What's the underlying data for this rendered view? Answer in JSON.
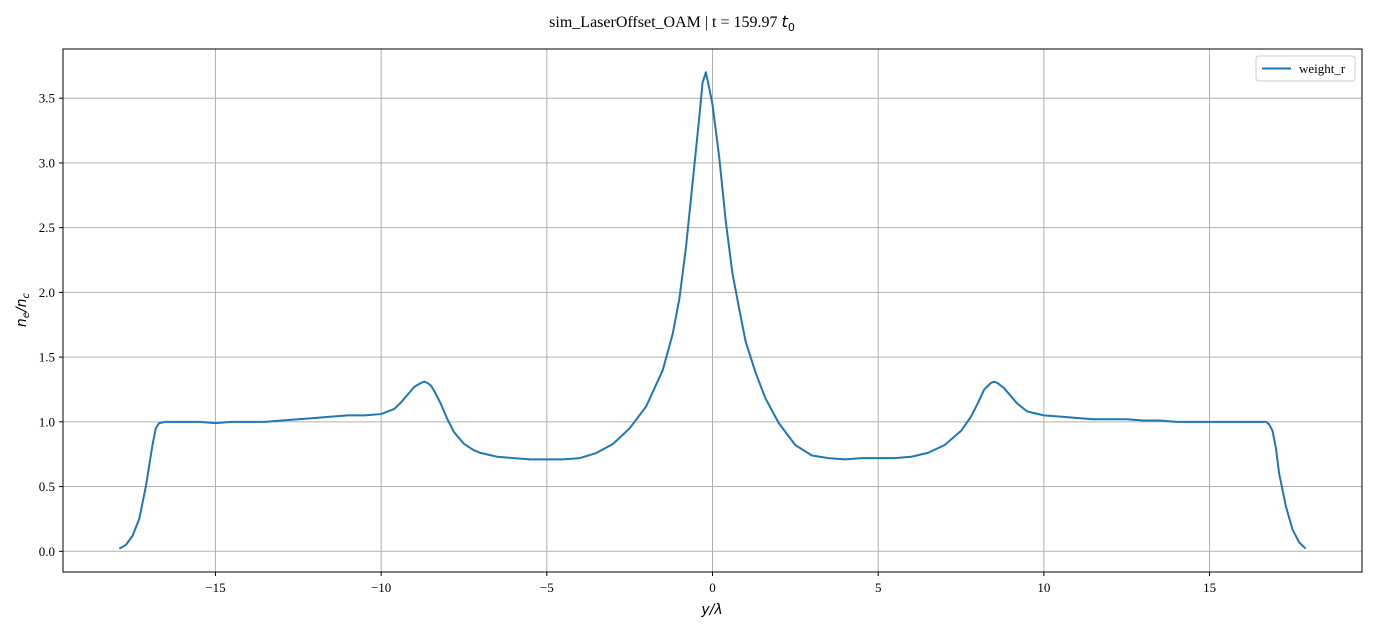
{
  "chart_data": {
    "type": "line",
    "title": "sim_LaserOffset_OAM | t = 159.97",
    "title_math": "t",
    "title_math_sub": "0",
    "xlabel": "y/λ",
    "ylabel": "n_e/n_c",
    "xlim": [
      -19.6,
      19.6
    ],
    "ylim": [
      -0.16,
      3.88
    ],
    "xticks": [
      -15,
      -10,
      -5,
      0,
      5,
      10,
      15
    ],
    "xtick_labels": [
      "−15",
      "−10",
      "−5",
      "0",
      "5",
      "10",
      "15"
    ],
    "yticks": [
      0.0,
      0.5,
      1.0,
      1.5,
      2.0,
      2.5,
      3.0,
      3.5
    ],
    "ytick_labels": [
      "0.0",
      "0.5",
      "1.0",
      "1.5",
      "2.0",
      "2.5",
      "3.0",
      "3.5"
    ],
    "grid": true,
    "legend_position": "top-right",
    "colors": {
      "series": "#1f77b4",
      "grid": "#b0b0b0",
      "axes": "#000000"
    },
    "series": [
      {
        "name": "weight_r",
        "x": [
          -17.9,
          -17.7,
          -17.5,
          -17.3,
          -17.1,
          -16.9,
          -16.8,
          -16.7,
          -16.5,
          -16.3,
          -16.0,
          -15.5,
          -15.0,
          -14.5,
          -14.0,
          -13.5,
          -13.0,
          -12.5,
          -12.0,
          -11.5,
          -11.0,
          -10.5,
          -10.0,
          -9.8,
          -9.6,
          -9.4,
          -9.2,
          -9.0,
          -8.8,
          -8.7,
          -8.6,
          -8.5,
          -8.4,
          -8.2,
          -8.0,
          -7.8,
          -7.5,
          -7.2,
          -7.0,
          -6.5,
          -6.0,
          -5.5,
          -5.0,
          -4.5,
          -4.0,
          -3.5,
          -3.0,
          -2.5,
          -2.0,
          -1.5,
          -1.2,
          -1.0,
          -0.8,
          -0.6,
          -0.4,
          -0.3,
          -0.2,
          -0.1,
          0.0,
          0.2,
          0.4,
          0.6,
          0.8,
          1.0,
          1.3,
          1.6,
          2.0,
          2.5,
          3.0,
          3.5,
          4.0,
          4.5,
          5.0,
          5.5,
          6.0,
          6.5,
          7.0,
          7.5,
          7.8,
          8.0,
          8.2,
          8.4,
          8.5,
          8.6,
          8.8,
          9.0,
          9.2,
          9.5,
          10.0,
          10.5,
          11.0,
          11.5,
          12.0,
          12.5,
          13.0,
          13.5,
          14.0,
          14.5,
          15.0,
          15.5,
          16.0,
          16.5,
          16.7,
          16.8,
          16.9,
          17.0,
          17.1,
          17.3,
          17.5,
          17.7,
          17.9
        ],
        "values": [
          0.02,
          0.05,
          0.12,
          0.25,
          0.5,
          0.82,
          0.95,
          0.99,
          1.0,
          1.0,
          1.0,
          1.0,
          0.99,
          1.0,
          1.0,
          1.0,
          1.01,
          1.02,
          1.03,
          1.04,
          1.05,
          1.05,
          1.06,
          1.08,
          1.1,
          1.15,
          1.21,
          1.27,
          1.3,
          1.31,
          1.3,
          1.28,
          1.24,
          1.14,
          1.02,
          0.92,
          0.83,
          0.78,
          0.76,
          0.73,
          0.72,
          0.71,
          0.71,
          0.71,
          0.72,
          0.76,
          0.83,
          0.95,
          1.12,
          1.4,
          1.68,
          1.95,
          2.35,
          2.85,
          3.35,
          3.62,
          3.7,
          3.58,
          3.45,
          3.05,
          2.55,
          2.15,
          1.88,
          1.62,
          1.38,
          1.18,
          0.99,
          0.82,
          0.74,
          0.72,
          0.71,
          0.72,
          0.72,
          0.72,
          0.73,
          0.76,
          0.82,
          0.93,
          1.04,
          1.14,
          1.25,
          1.3,
          1.31,
          1.3,
          1.26,
          1.2,
          1.14,
          1.08,
          1.05,
          1.04,
          1.03,
          1.02,
          1.02,
          1.02,
          1.01,
          1.01,
          1.0,
          1.0,
          1.0,
          1.0,
          1.0,
          1.0,
          1.0,
          0.98,
          0.93,
          0.8,
          0.6,
          0.35,
          0.17,
          0.07,
          0.02
        ]
      }
    ]
  }
}
